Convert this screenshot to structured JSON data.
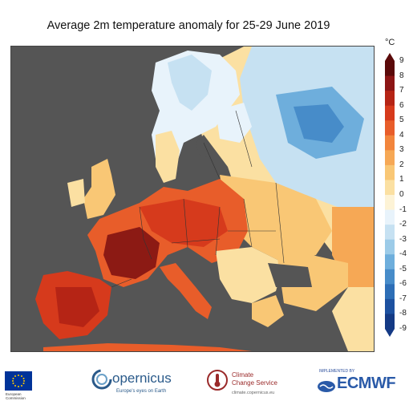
{
  "title": "Average 2m temperature anomaly for 25-29 June 2019",
  "colorbar": {
    "unit": "°C",
    "ticks": [
      "9",
      "8",
      "7",
      "6",
      "5",
      "4",
      "3",
      "2",
      "1",
      "0",
      "-1",
      "-2",
      "-3",
      "-4",
      "-5",
      "-6",
      "-7",
      "-8",
      "-9"
    ],
    "colors": [
      "#5b0a0a",
      "#8c1515",
      "#b52415",
      "#d63a1c",
      "#e85d2a",
      "#f2853c",
      "#f6a855",
      "#f9c775",
      "#fbe0a2",
      "#fdf3d6",
      "#e8f3fb",
      "#c6e1f2",
      "#9ccbe8",
      "#6eaedc",
      "#478cc9",
      "#2d6eb6",
      "#1d51a0",
      "#143a85"
    ],
    "min": -9,
    "max": 9
  },
  "map": {
    "colors": {
      "land_hot": "#b52415",
      "land_very_hot": "#8c1a14",
      "land_warm": "#e85d2a",
      "land_mild": "#f6a855",
      "land_light": "#fbe0a2",
      "land_cool": "#c6e1f2",
      "land_cold": "#6eaedc",
      "sea": "#555555",
      "border": "#333333"
    }
  },
  "logos": {
    "eu_text": [
      "European",
      "Commission"
    ],
    "copernicus_name": "opernicus",
    "copernicus_tagline": "Europe's eyes on Earth",
    "c3s_name_lines": [
      "Climate",
      "Change Service"
    ],
    "c3s_url": "climate.copernicus.eu",
    "ecmwf_implemented": "IMPLEMENTED BY",
    "ecmwf_name": "ECMWF"
  }
}
